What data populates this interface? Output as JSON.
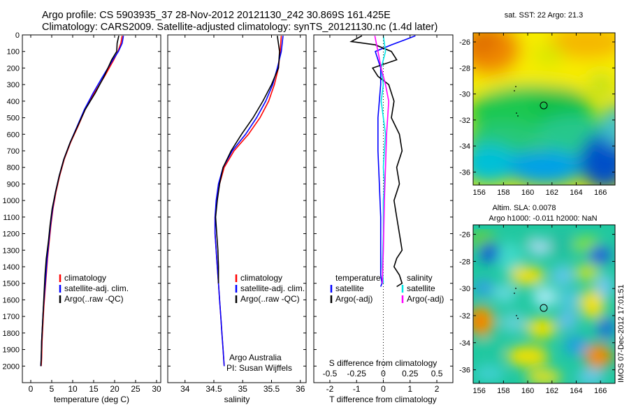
{
  "title_line1": "Argo profile: CS 5903935_37 28-Nov-2012 20121130_242 30.869S 161.425E",
  "title_line2": "Climatology: CARS2009. Satellite-adjusted climatology: synTS_20121130.nc (1.4d later)",
  "side_stamp": "IMOS 07-Dec-2012 17:01:51",
  "credit_line1": "Argo Australia",
  "credit_line2": "PI: Susan Wijffels",
  "colors": {
    "climatology": "#ff0000",
    "satellite": "#0000ff",
    "argo": "#000000",
    "s_satellite": "#00e5e5",
    "s_argo": "#ff00ff"
  },
  "chart_data": [
    {
      "type": "line",
      "panel": "temperature",
      "xlabel": "temperature (deg C)",
      "ylabel": "",
      "xlim": [
        -2,
        31
      ],
      "ylim": [
        2100,
        0
      ],
      "xticks": [
        0,
        5,
        10,
        15,
        20,
        25,
        30
      ],
      "yticks": [
        0,
        100,
        200,
        300,
        400,
        500,
        600,
        700,
        800,
        900,
        1000,
        1100,
        1200,
        1300,
        1400,
        1500,
        1600,
        1700,
        1800,
        1900,
        2000
      ],
      "legend": {
        "placement": "bottom-left",
        "entries": [
          "climatology",
          "satellite-adj. clim.",
          "Argo(..raw -QC)"
        ]
      },
      "series": [
        {
          "name": "climatology",
          "color_key": "climatology",
          "x": [
            21.8,
            21.5,
            20.8,
            19.8,
            17.6,
            15.2,
            13.0,
            11.3,
            9.5,
            8.0,
            6.9,
            6.0,
            5.3,
            4.8,
            4.4,
            4.0,
            3.7,
            3.4,
            3.1,
            2.9,
            2.7,
            2.6,
            2.5
          ],
          "y": [
            5,
            50,
            100,
            150,
            250,
            350,
            450,
            550,
            650,
            750,
            850,
            950,
            1050,
            1150,
            1250,
            1350,
            1450,
            1550,
            1650,
            1750,
            1850,
            1950,
            2000
          ]
        },
        {
          "name": "satellite-adj. clim.",
          "color_key": "satellite",
          "x": [
            22.1,
            21.8,
            20.9,
            19.6,
            17.2,
            14.9,
            12.8,
            11.1,
            9.4,
            7.9,
            6.8,
            5.9,
            5.2,
            4.7,
            4.3,
            3.9,
            3.6,
            3.3,
            3.0,
            2.8,
            2.6,
            2.5,
            2.4
          ],
          "y": [
            5,
            50,
            100,
            150,
            250,
            350,
            450,
            550,
            650,
            750,
            850,
            950,
            1050,
            1150,
            1250,
            1350,
            1450,
            1550,
            1650,
            1750,
            1850,
            1950,
            2000
          ]
        },
        {
          "name": "Argo(..raw -QC)",
          "color_key": "argo",
          "x": [
            21.0,
            20.6,
            20.5,
            19.3,
            17.5,
            15.4,
            13.0,
            11.2,
            9.4,
            7.9,
            6.8,
            5.9,
            5.1,
            4.6,
            4.2,
            3.7,
            3.4,
            3.2,
            3.0,
            2.8,
            2.6,
            2.5,
            2.4
          ],
          "y": [
            5,
            50,
            100,
            150,
            250,
            350,
            450,
            550,
            650,
            750,
            850,
            950,
            1050,
            1150,
            1250,
            1350,
            1450,
            1550,
            1650,
            1750,
            1850,
            1950,
            2000
          ]
        }
      ]
    },
    {
      "type": "line",
      "panel": "salinity",
      "xlabel": "salinity",
      "ylabel": "",
      "xlim": [
        33.7,
        36.1
      ],
      "ylim": [
        2100,
        0
      ],
      "xticks": [
        34,
        34.5,
        35,
        35.5,
        36
      ],
      "yticks": [
        0,
        100,
        200,
        300,
        400,
        500,
        600,
        700,
        800,
        900,
        1000,
        1100,
        1200,
        1300,
        1400,
        1500,
        1600,
        1700,
        1800,
        1900,
        2000
      ],
      "legend": {
        "placement": "bottom-right",
        "entries": [
          "climatology",
          "satellite-adj. clim.",
          "Argo(..raw -QC)"
        ]
      },
      "series": [
        {
          "name": "climatology",
          "color_key": "climatology",
          "x": [
            35.67,
            35.65,
            35.62,
            35.55,
            35.45,
            35.3,
            35.1,
            34.85,
            34.68,
            34.6,
            34.55,
            34.52,
            34.52,
            34.54,
            34.56,
            34.58,
            34.6,
            34.62,
            34.64,
            34.66,
            34.68
          ],
          "y": [
            5,
            100,
            200,
            300,
            400,
            500,
            600,
            700,
            800,
            900,
            1000,
            1100,
            1200,
            1300,
            1400,
            1500,
            1600,
            1700,
            1800,
            1900,
            2000
          ]
        },
        {
          "name": "satellite-adj. clim.",
          "color_key": "satellite",
          "x": [
            35.7,
            35.67,
            35.6,
            35.52,
            35.4,
            35.24,
            35.05,
            34.82,
            34.66,
            34.58,
            34.54,
            34.52,
            34.52,
            34.54,
            34.56,
            34.58,
            34.6,
            34.62,
            34.64,
            34.66,
            34.68
          ],
          "y": [
            5,
            100,
            200,
            300,
            400,
            500,
            600,
            700,
            800,
            900,
            1000,
            1100,
            1200,
            1300,
            1400,
            1500,
            1600,
            1700,
            1800,
            1900,
            2000
          ]
        },
        {
          "name": "Argo(..raw -QC)",
          "color_key": "argo",
          "x": [
            35.6,
            35.64,
            35.62,
            35.5,
            35.35,
            35.18,
            34.98,
            34.8,
            34.66,
            34.6,
            34.56,
            34.53,
            34.55,
            34.57,
            34.58,
            34.58
          ],
          "y": [
            5,
            100,
            200,
            300,
            400,
            500,
            600,
            700,
            800,
            900,
            1000,
            1100,
            1200,
            1300,
            1400,
            1500
          ]
        }
      ]
    },
    {
      "type": "line",
      "panel": "difference",
      "xlabel": "T difference from climatology",
      "xlabel_top": "S difference from climatology",
      "xlim": [
        -2.6,
        2.6
      ],
      "ylim": [
        2100,
        0
      ],
      "xticks": [
        -2,
        -1,
        0,
        1,
        2
      ],
      "s_ticks": [
        -0.5,
        -0.25,
        0,
        0.25,
        0.5
      ],
      "s_scale": 4,
      "zero_line": "dotted",
      "legend": {
        "placement": "bottom",
        "columns": [
          {
            "title": "temperature",
            "entries": [
              "satellite",
              "Argo(-adj)"
            ]
          },
          {
            "title": "salinity",
            "entries": [
              "satellite",
              "Argo(-adj)"
            ]
          }
        ]
      },
      "series": [
        {
          "name": "satellite",
          "group": "temperature",
          "color_key": "satellite",
          "x": [
            1.2,
            0.8,
            0.3,
            -0.3,
            -0.1,
            -0.1,
            -0.2,
            -0.2,
            -0.15,
            -0.1,
            -0.1,
            -0.1,
            -0.1,
            -0.05,
            -0.1
          ],
          "y": [
            5,
            30,
            60,
            100,
            200,
            300,
            500,
            700,
            900,
            1100,
            1300,
            1400,
            1450,
            1500,
            1520
          ]
        },
        {
          "name": "Argo(-adj)",
          "group": "temperature",
          "color_key": "argo",
          "x": [
            -0.8,
            -1.2,
            -0.3,
            0.3,
            0.5,
            -0.4,
            -0.2,
            0.2,
            0.4,
            0.3,
            0.6,
            0.7,
            0.5,
            0.6,
            0.4,
            0.5,
            0.6,
            0.7,
            0.5,
            0.4,
            0.6,
            0.7,
            0.5
          ],
          "y": [
            5,
            40,
            60,
            100,
            150,
            200,
            250,
            300,
            400,
            500,
            600,
            700,
            800,
            900,
            1000,
            1100,
            1200,
            1300,
            1350,
            1400,
            1450,
            1500,
            1520
          ]
        },
        {
          "name": "satellite",
          "group": "salinity",
          "color_key": "s_satellite",
          "x": [
            0.0,
            0.02,
            -0.02,
            0.0,
            -0.02,
            0.0,
            0.02,
            0.01,
            0.0,
            0.01,
            0.0,
            0.0,
            -0.01,
            0.0
          ],
          "y": [
            5,
            100,
            200,
            300,
            400,
            500,
            600,
            700,
            800,
            900,
            1000,
            1200,
            1400,
            1500
          ]
        },
        {
          "name": "Argo(-adj)",
          "group": "salinity",
          "color_key": "s_argo",
          "x": [
            -0.08,
            -0.05,
            -0.02,
            0.02,
            0.05,
            0.03,
            0.02,
            0.01,
            0.0,
            -0.01
          ],
          "y": [
            5,
            100,
            200,
            300,
            400,
            600,
            800,
            1000,
            1300,
            1500
          ]
        }
      ]
    },
    {
      "type": "heatmap",
      "panel": "sst_map",
      "title": "sat. SST: 22 Argo: 21.3",
      "xlim": [
        155.5,
        167.2
      ],
      "ylim": [
        -37,
        -25.3
      ],
      "xticks": [
        156,
        158,
        160,
        162,
        164,
        166
      ],
      "yticks": [
        -26,
        -28,
        -30,
        -32,
        -34,
        -36
      ],
      "colormap": "jet",
      "marker": {
        "lon": 161.425,
        "lat": -30.869
      }
    },
    {
      "type": "heatmap",
      "panel": "sla_map",
      "title_line1": "Altim. SLA: 0.0078",
      "title_line2": "Argo h1000: -0.011 h2000: NaN",
      "xlim": [
        155.5,
        167.2
      ],
      "ylim": [
        -37,
        -25.3
      ],
      "xticks": [
        156,
        158,
        160,
        162,
        164,
        166
      ],
      "yticks": [
        -26,
        -28,
        -30,
        -32,
        -34,
        -36
      ],
      "colormap": "jet",
      "marker": {
        "lon": 161.425,
        "lat": -30.869
      }
    }
  ]
}
